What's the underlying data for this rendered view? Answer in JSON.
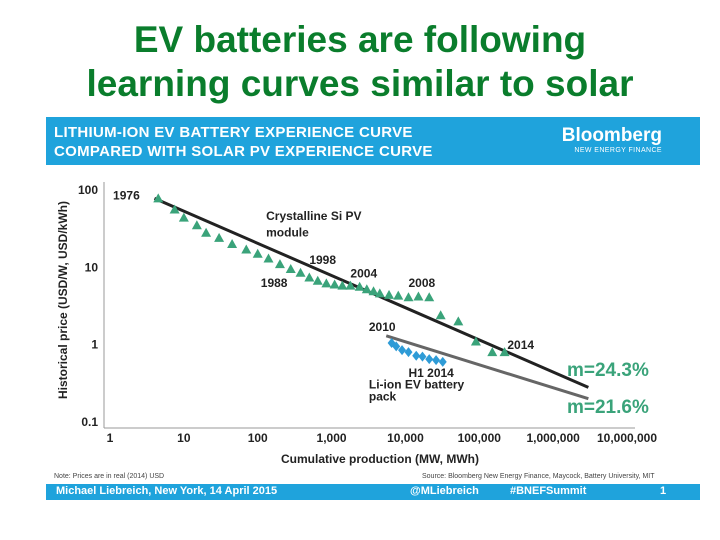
{
  "slide": {
    "title_line1": "EV batteries are following",
    "title_line2": "learning curves similar to solar"
  },
  "banner": {
    "line1": "LITHIUM-ION EV BATTERY EXPERIENCE CURVE",
    "line2": "COMPARED WITH SOLAR PV EXPERIENCE CURVE",
    "brand": "Bloomberg",
    "brand_sub": "NEW ENERGY FINANCE",
    "color": "#1fa3dc"
  },
  "footer": {
    "note": "Note: Prices are in real (2014) USD",
    "source": "Source: Bloomberg New Energy Finance, Maycock, Battery University, MIT",
    "author": "Michael Liebreich, New York, 14 April 2015",
    "handle": "@MLiebreich",
    "hashtag": "#BNEFSummit",
    "page": "1"
  },
  "chart_data": {
    "type": "scatter",
    "xscale": "log",
    "yscale": "log",
    "xlabel": "Cumulative production (MW, MWh)",
    "ylabel": "Historical price (USD/W, USD/kWh)",
    "xlim": [
      1,
      10000000
    ],
    "ylim": [
      0.1,
      100
    ],
    "x_ticks": [
      {
        "value": 1,
        "label": "1"
      },
      {
        "value": 10,
        "label": "10"
      },
      {
        "value": 100,
        "label": "100"
      },
      {
        "value": 1000,
        "label": "1,000"
      },
      {
        "value": 10000,
        "label": "10,000"
      },
      {
        "value": 100000,
        "label": "100,000"
      },
      {
        "value": 1000000,
        "label": "1,000,000"
      },
      {
        "value": 10000000,
        "label": "10,000,000"
      }
    ],
    "y_ticks": [
      {
        "value": 100,
        "label": "100"
      },
      {
        "value": 10,
        "label": "10"
      },
      {
        "value": 1,
        "label": "1"
      },
      {
        "value": 0.1,
        "label": "0.1"
      }
    ],
    "series": [
      {
        "name": "Crystalline Si PV module",
        "marker": "triangle",
        "color": "#3aa37a",
        "points": [
          [
            4.5,
            78
          ],
          [
            7.5,
            56
          ],
          [
            10,
            44
          ],
          [
            15,
            35
          ],
          [
            20,
            28
          ],
          [
            30,
            24
          ],
          [
            45,
            20
          ],
          [
            70,
            17
          ],
          [
            100,
            15
          ],
          [
            140,
            13
          ],
          [
            200,
            11
          ],
          [
            280,
            9.5
          ],
          [
            380,
            8.5
          ],
          [
            500,
            7.4
          ],
          [
            650,
            6.7
          ],
          [
            850,
            6.2
          ],
          [
            1100,
            6
          ],
          [
            1400,
            5.8
          ],
          [
            1800,
            5.8
          ],
          [
            2400,
            5.6
          ],
          [
            3000,
            5.2
          ],
          [
            3700,
            4.9
          ],
          [
            4500,
            4.6
          ],
          [
            6000,
            4.4
          ],
          [
            8000,
            4.3
          ],
          [
            11000,
            4.1
          ],
          [
            15000,
            4.2
          ],
          [
            21000,
            4.1
          ],
          [
            30000,
            2.4
          ],
          [
            52000,
            2.0
          ],
          [
            90000,
            1.1
          ],
          [
            150000,
            0.8
          ],
          [
            220000,
            0.8
          ]
        ]
      },
      {
        "name": "Li-ion EV battery pack",
        "marker": "diamond",
        "color": "#2e9bd6",
        "points": [
          [
            6500,
            1.05
          ],
          [
            7500,
            0.95
          ],
          [
            9000,
            0.85
          ],
          [
            11000,
            0.8
          ],
          [
            14000,
            0.72
          ],
          [
            17000,
            0.7
          ],
          [
            21000,
            0.65
          ],
          [
            26000,
            0.63
          ],
          [
            32000,
            0.6
          ]
        ]
      }
    ],
    "trendlines": [
      {
        "name": "PV learning rate",
        "label": "m=24.3%",
        "label_color": "#3aa37a",
        "color": "#222222",
        "from": [
          4,
          78
        ],
        "to": [
          3000000,
          0.28
        ]
      },
      {
        "name": "Battery learning rate",
        "label": "m=21.6%",
        "label_color": "#3aa37a",
        "color": "#666666",
        "from": [
          5500,
          1.3
        ],
        "to": [
          3000000,
          0.2
        ]
      }
    ],
    "annotations": [
      {
        "text": "1976",
        "x": 1.1,
        "y": 75
      },
      {
        "text": "Crystalline Si PV",
        "x": 130,
        "y": 41
      },
      {
        "text": "module",
        "x": 130,
        "y": 25
      },
      {
        "text": "1998",
        "x": 500,
        "y": 11
      },
      {
        "text": "1988",
        "x": 110,
        "y": 5.6
      },
      {
        "text": "2004",
        "x": 1800,
        "y": 7.4
      },
      {
        "text": "2008",
        "x": 11000,
        "y": 5.6
      },
      {
        "text": "2010",
        "x": 3200,
        "y": 1.5
      },
      {
        "text": "2014",
        "x": 240000,
        "y": 0.88
      },
      {
        "text": "H1 2014",
        "x": 11000,
        "y": 0.38
      },
      {
        "text": "Li-ion EV battery",
        "x": 3200,
        "y": 0.27
      },
      {
        "text": "pack",
        "x": 3200,
        "y": 0.19
      }
    ]
  }
}
